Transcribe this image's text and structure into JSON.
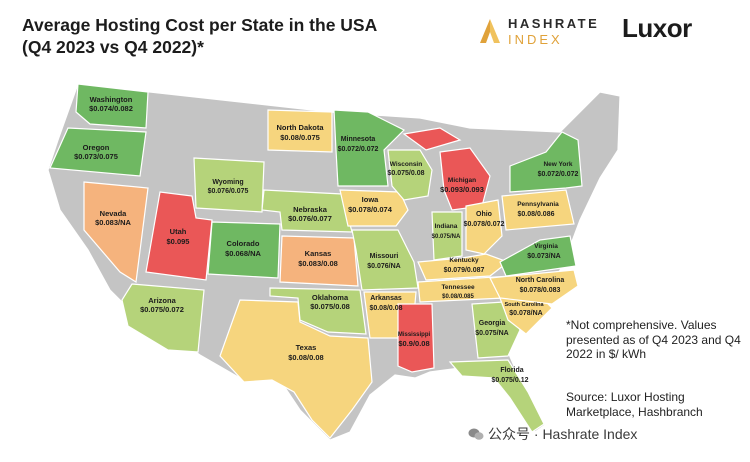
{
  "title": {
    "line1": "Average Hosting Cost per State in the USA",
    "line2": "(Q4 2023 vs Q4 2022)*"
  },
  "logos": {
    "hashrate_top": "HASHRATE",
    "hashrate_bottom": "INDEX",
    "luxor": "Luxor",
    "hashrate_color": "#e0a23a"
  },
  "colors": {
    "green_dark": "#6fb862",
    "green_light": "#b5d37a",
    "yellow": "#f6d57e",
    "orange": "#f5b37d",
    "red": "#ea5757",
    "gray": "#c4c4c4"
  },
  "states": [
    {
      "name": "Washington",
      "value": "$0.074/0.082",
      "color": "green_dark"
    },
    {
      "name": "Oregon",
      "value": "$0.073/0.075",
      "color": "green_dark"
    },
    {
      "name": "Nevada",
      "value": "$0.083/NA",
      "color": "orange"
    },
    {
      "name": "Utah",
      "value": "$0.095",
      "color": "red"
    },
    {
      "name": "Arizona",
      "value": "$0.075/0.072",
      "color": "green_light"
    },
    {
      "name": "Wyoming",
      "value": "$0.076/0.075",
      "color": "green_light"
    },
    {
      "name": "Colorado",
      "value": "$0.068/NA",
      "color": "green_dark"
    },
    {
      "name": "North Dakota",
      "value": "$0.08/0.075",
      "color": "yellow"
    },
    {
      "name": "Nebraska",
      "value": "$0.076/0.077",
      "color": "green_light"
    },
    {
      "name": "Kansas",
      "value": "$0.083/0.08",
      "color": "orange"
    },
    {
      "name": "Oklahoma",
      "value": "$0.075/0.08",
      "color": "green_light"
    },
    {
      "name": "Texas",
      "value": "$0.08/0.08",
      "color": "yellow"
    },
    {
      "name": "Minnesota",
      "value": "$0.072/0.072",
      "color": "green_dark"
    },
    {
      "name": "Iowa",
      "value": "$0.078/0.074",
      "color": "yellow"
    },
    {
      "name": "Missouri",
      "value": "$0.076/NA",
      "color": "green_light"
    },
    {
      "name": "Arkansas",
      "value": "$0.08/0.08",
      "color": "yellow"
    },
    {
      "name": "Mississippi",
      "value": "$0.9/0.08",
      "color": "red"
    },
    {
      "name": "Wisconsin",
      "value": "$0.075/0.08",
      "color": "green_light"
    },
    {
      "name": "Michigan",
      "value": "$0.093/0.093",
      "color": "red"
    },
    {
      "name": "Indiana",
      "value": "$0.075/NA",
      "color": "green_light"
    },
    {
      "name": "Ohio",
      "value": "$0.078/0.072",
      "color": "yellow"
    },
    {
      "name": "Kentucky",
      "value": "$0.079/0.087",
      "color": "yellow"
    },
    {
      "name": "Tennessee",
      "value": "$0.08/0.085",
      "color": "yellow"
    },
    {
      "name": "Georgia",
      "value": "$0.075/NA",
      "color": "green_light"
    },
    {
      "name": "Florida",
      "value": "$0.075/0.12",
      "color": "green_light"
    },
    {
      "name": "South Carolina",
      "value": "$0.078/NA",
      "color": "yellow"
    },
    {
      "name": "North Carolina",
      "value": "$0.078/0.083",
      "color": "yellow"
    },
    {
      "name": "Virginia",
      "value": "$0.073/NA",
      "color": "green_dark"
    },
    {
      "name": "Pennsylvania",
      "value": "$0.08/0.086",
      "color": "yellow"
    },
    {
      "name": "New York",
      "value": "$0.072/0.072",
      "color": "green_dark"
    }
  ],
  "note": "*Not comprehensive. Values presented as of Q4 2023 and Q4 2022 in $/ kWh",
  "source": "Source: Luxor Hosting Marketplace, Hashbranch",
  "watermark": "公众号 · Hashrate Index"
}
